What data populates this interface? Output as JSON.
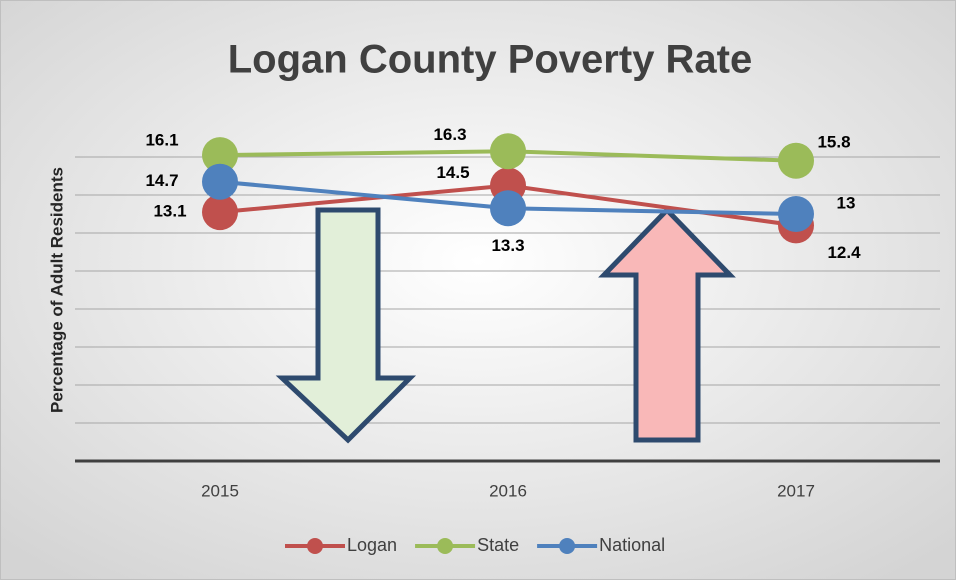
{
  "chart_data": {
    "type": "line",
    "title": "Logan County Poverty Rate",
    "y_axis_label": "Percentage of Adult Residents",
    "categories": [
      "2015",
      "2016",
      "2017"
    ],
    "series": [
      {
        "name": "Logan",
        "color": "#c0504d",
        "values": [
          13.1,
          14.5,
          12.4
        ]
      },
      {
        "name": "State",
        "color": "#9bbb59",
        "values": [
          16.1,
          16.3,
          15.8
        ]
      },
      {
        "name": "National",
        "color": "#4f81bd",
        "values": [
          14.7,
          13.3,
          13
        ]
      }
    ],
    "ylim": [
      0,
      18
    ],
    "yticks": [
      0,
      2,
      4,
      6,
      8,
      10,
      12,
      14,
      16
    ],
    "grid": true,
    "legend": "bottom"
  }
}
